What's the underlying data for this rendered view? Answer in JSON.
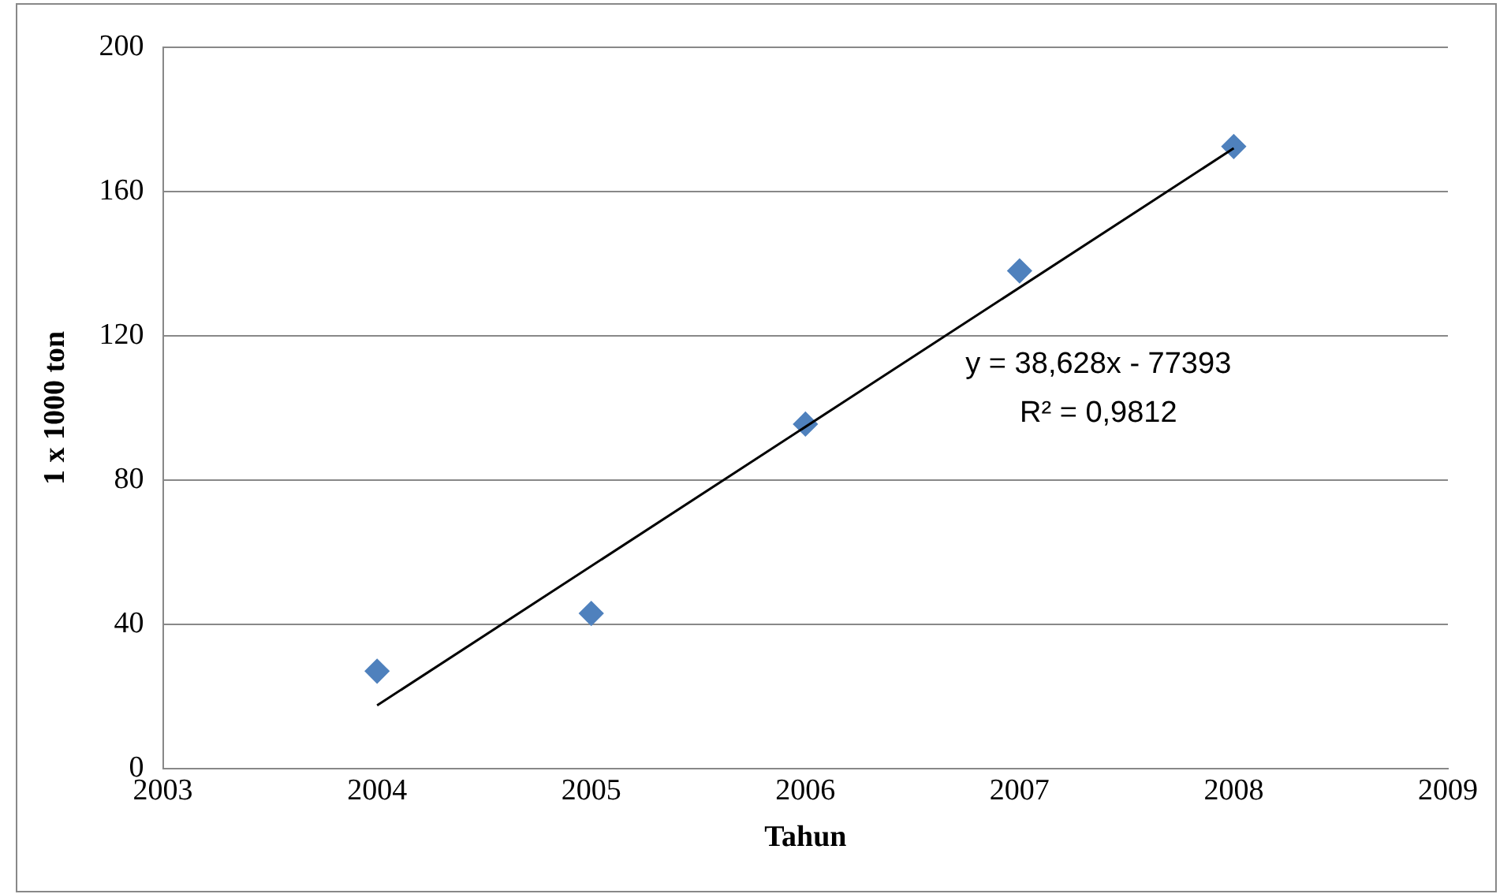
{
  "chart_data": {
    "type": "scatter",
    "xlabel": "Tahun",
    "ylabel": "1 x 1000 ton",
    "xlim": [
      2003,
      2009
    ],
    "xticks": [
      2003,
      2004,
      2005,
      2006,
      2007,
      2008,
      2009
    ],
    "ylim": [
      0,
      200
    ],
    "yticks": [
      0,
      40,
      80,
      120,
      160,
      200
    ],
    "grid": "y",
    "legend": false,
    "marker": "diamond",
    "annotations": [
      "y = 38,628x - 77393",
      "R² = 0,9812"
    ],
    "series": [
      {
        "type": "scatter",
        "color": "#4f81bd",
        "x": [
          2004,
          2005,
          2006,
          2007,
          2008
        ],
        "values": [
          27,
          43,
          95.5,
          138,
          172.5
        ]
      },
      {
        "type": "line",
        "color": "#000000",
        "marker": "none",
        "x": [
          2004,
          2008
        ],
        "values": [
          17.5,
          172.0
        ]
      }
    ]
  }
}
